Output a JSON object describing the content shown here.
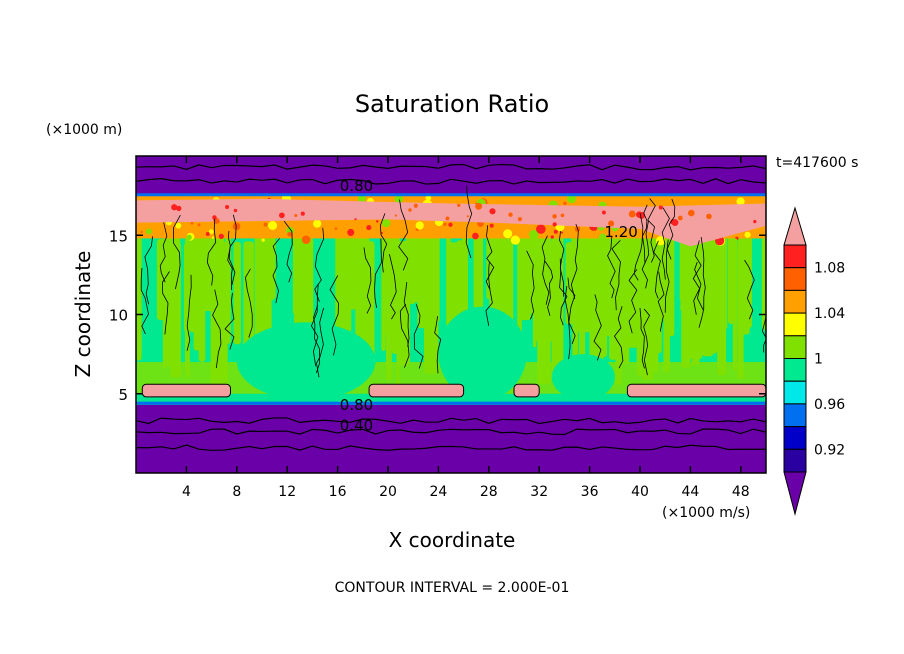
{
  "chart_data": {
    "type": "heatmap",
    "title": "Saturation Ratio",
    "xlabel": "X coordinate",
    "ylabel": "Z coordinate",
    "x_unit": "(×1000 m/s)",
    "y_unit": "(×1000 m)",
    "time_label": "t=417600 s",
    "footer": "CONTOUR INTERVAL = 2.000E-01",
    "xlim": [
      0,
      50
    ],
    "ylim": [
      0,
      20
    ],
    "x_ticks": [
      4,
      8,
      12,
      16,
      20,
      24,
      28,
      32,
      36,
      40,
      44,
      48
    ],
    "y_ticks": [
      5,
      10,
      15
    ],
    "contour_labels": [
      {
        "text": "0.80",
        "x": 17.5,
        "z": 18.1
      },
      {
        "text": "1.20",
        "x": 38.5,
        "z": 15.2
      },
      {
        "text": "0.80",
        "x": 17.5,
        "z": 4.3
      },
      {
        "text": "0.40",
        "x": 17.5,
        "z": 3.0
      }
    ],
    "colorbar": {
      "labels": [
        "1.08",
        "1.04",
        "1",
        "0.96",
        "0.92"
      ],
      "colors": [
        "#6a00a8",
        "#2a00a0",
        "#0000c8",
        "#0070f0",
        "#00e8e8",
        "#00e890",
        "#80e000",
        "#ffff00",
        "#ffa000",
        "#ff6000",
        "#ff2020",
        "#f4a0a0"
      ]
    },
    "layers": [
      {
        "z_from": 0.0,
        "z_to": 4.5,
        "ratio": "< 0.90",
        "color": "#6a00a8"
      },
      {
        "z_from": 4.5,
        "z_to": 16.0,
        "ratio": "0.98 - 1.02",
        "color": "#00e890/#80e000"
      },
      {
        "z_from": 16.0,
        "z_to": 17.5,
        "ratio": "> 1.10",
        "color": "#f4a0a0"
      },
      {
        "z_from": 17.5,
        "z_to": 20.0,
        "ratio": "< 0.90",
        "color": "#6a00a8"
      }
    ]
  }
}
